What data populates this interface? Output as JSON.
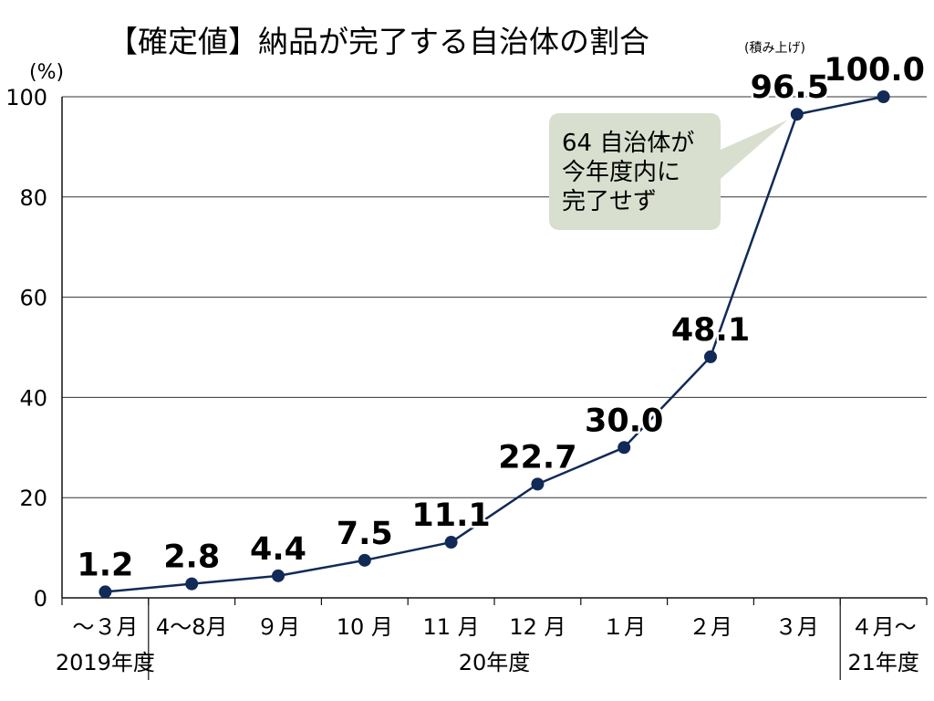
{
  "chart_data": {
    "type": "line",
    "title": "【確定値】納品が完了する自治体の割合",
    "subtitle": "(積み上げ)",
    "ylabel": "(%)",
    "ylim": [
      0,
      100
    ],
    "yticks": [
      "0",
      "20",
      "40",
      "60",
      "80",
      "100"
    ],
    "grid": true,
    "categories": [
      "～３月",
      "4～8月",
      "９月",
      "10 月",
      "11 月",
      "12 月",
      "１月",
      "２月",
      "３月",
      "４月～"
    ],
    "value_labels": [
      "1.2",
      "2.8",
      "4.4",
      "7.5",
      "11.1",
      "22.7",
      "30.0",
      "48.1",
      "96.5",
      "100.0"
    ],
    "series": [
      {
        "values": [
          1.2,
          2.8,
          4.4,
          7.5,
          11.1,
          22.7,
          30.0,
          48.1,
          96.5,
          100.0
        ]
      }
    ],
    "fiscal_years": [
      "2019年度",
      "20年度",
      "21年度"
    ],
    "annotation": [
      "64 自治体が",
      "今年度内に",
      "完了せず"
    ],
    "colors": {
      "line": "#112a57",
      "marker": "#112a57",
      "callout_bg": "#d9dfcf",
      "grid": "#333333"
    }
  }
}
